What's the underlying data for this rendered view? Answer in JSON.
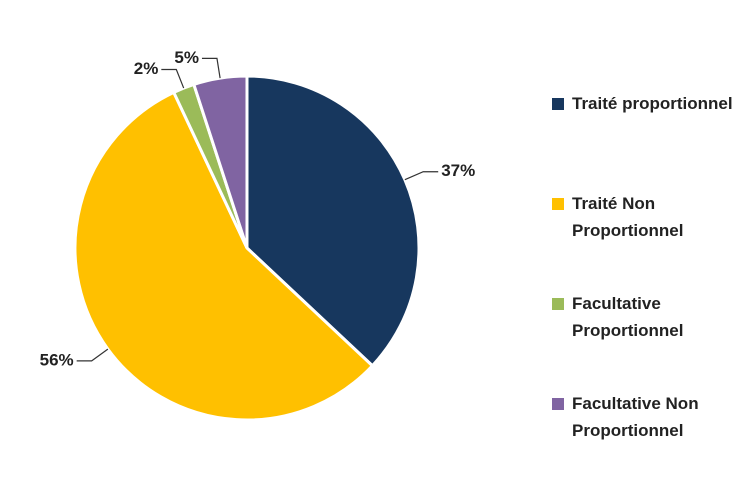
{
  "chart_data": {
    "type": "pie",
    "categories": [
      "Traité proportionnel",
      "Traité Non Proportionnel",
      "Facultative Proportionnel",
      "Facultative Non Proportionnel"
    ],
    "values": [
      37,
      56,
      2,
      5
    ],
    "value_labels": [
      "37%",
      "56%",
      "2%",
      "5%"
    ],
    "colors": [
      "#17375e",
      "#ffc000",
      "#9bbb59",
      "#8064a2"
    ],
    "legend": "right"
  }
}
